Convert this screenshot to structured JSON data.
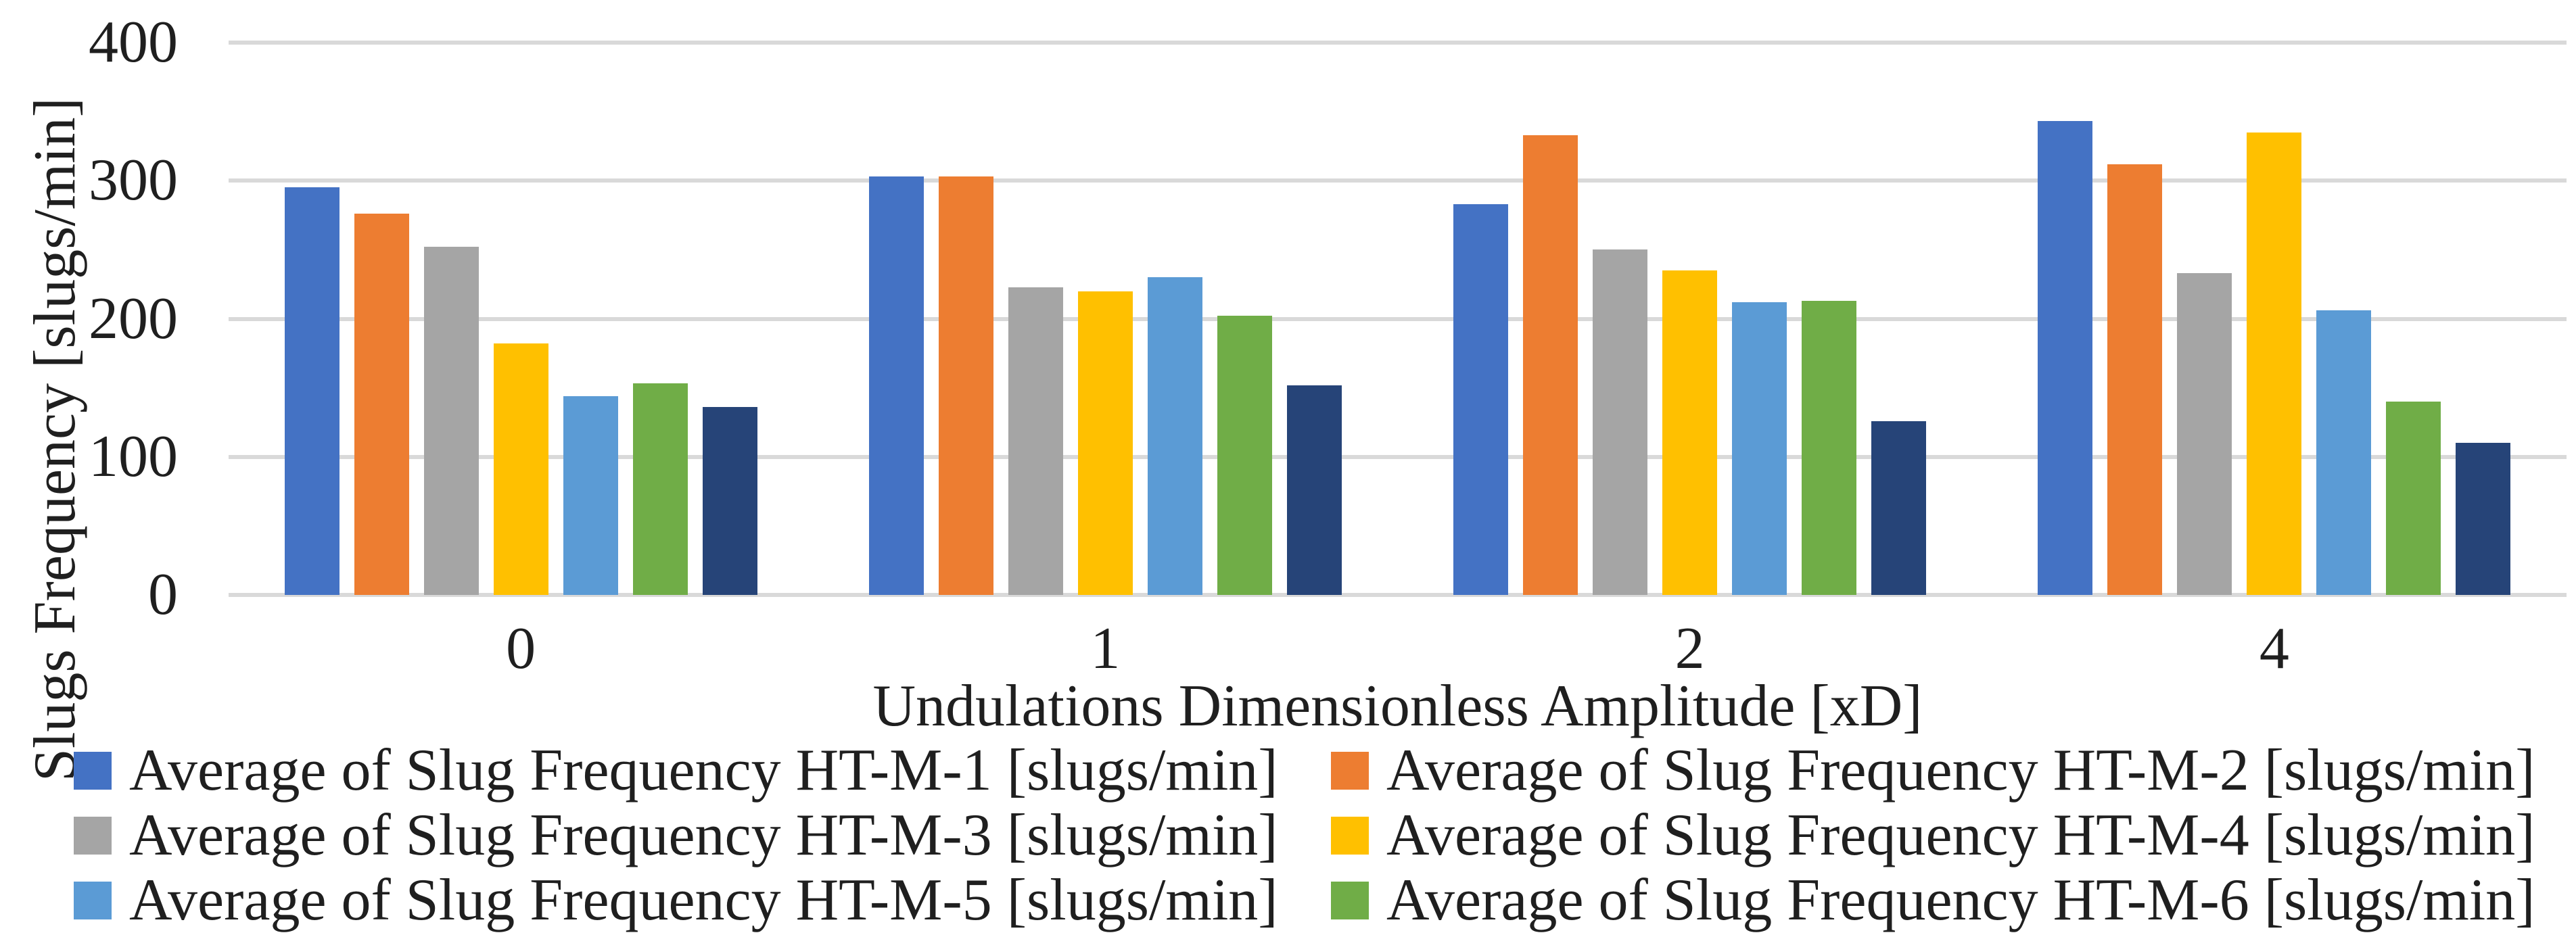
{
  "chart_data": {
    "type": "bar",
    "title": "",
    "xlabel": "Undulations Dimensionless Amplitude [xD]",
    "ylabel": "Slugs Frequency [slugs/min]",
    "categories": [
      "0",
      "1",
      "2",
      "4"
    ],
    "series": [
      {
        "name": "Average of Slug Frequency HT-M-1 [slugs/min]",
        "color": "#4472C4",
        "values": [
          295,
          303,
          283,
          343
        ]
      },
      {
        "name": "Average of Slug Frequency HT-M-2 [slugs/min]",
        "color": "#ED7D31",
        "values": [
          276,
          303,
          333,
          312
        ]
      },
      {
        "name": "Average of Slug Frequency HT-M-3 [slugs/min]",
        "color": "#A5A5A5",
        "values": [
          252,
          223,
          250,
          233
        ]
      },
      {
        "name": "Average of Slug Frequency HT-M-4 [slugs/min]",
        "color": "#FFC000",
        "values": [
          182,
          220,
          235,
          335
        ]
      },
      {
        "name": "Average of Slug Frequency HT-M-5 [slugs/min]",
        "color": "#5B9BD5",
        "values": [
          144,
          230,
          212,
          206
        ]
      },
      {
        "name": "Average of Slug Frequency HT-M-6 [slugs/min]",
        "color": "#70AD47",
        "values": [
          153,
          202,
          213,
          140
        ]
      },
      {
        "name": "",
        "color": "#264478",
        "values": [
          136,
          152,
          126,
          110
        ]
      }
    ],
    "ylim": [
      0,
      400
    ],
    "yticks": [
      0,
      100,
      200,
      300,
      400
    ],
    "grid": true,
    "legend_position": "bottom",
    "legend_columns": 2
  },
  "colors": {
    "gridline": "#D9D9D9",
    "text": "#1F1F1F",
    "background": "#FFFFFF"
  }
}
